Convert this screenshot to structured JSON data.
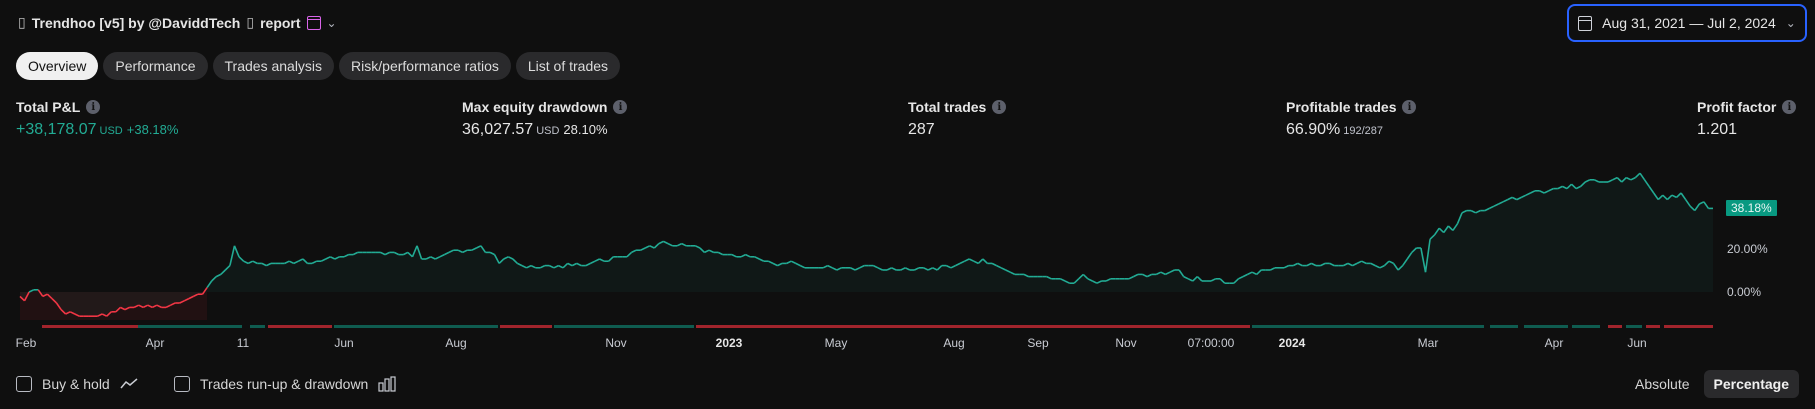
{
  "header": {
    "title": "Trendhoo [v5] by @DaviddTech",
    "suffix": "report",
    "date_range": "Aug 31, 2021 — Jul 2, 2024"
  },
  "tabs": [
    "Overview",
    "Performance",
    "Trades analysis",
    "Risk/performance ratios",
    "List of trades"
  ],
  "metrics": {
    "total_pnl": {
      "label": "Total P&L",
      "value": "+38,178.07",
      "unit": "USD",
      "pct": "+38.18%"
    },
    "max_dd": {
      "label": "Max equity drawdown",
      "value": "36,027.57",
      "unit": "USD",
      "pct": "28.10%"
    },
    "total_trades": {
      "label": "Total trades",
      "value": "287"
    },
    "profitable": {
      "label": "Profitable trades",
      "value": "66.90%",
      "sub": "192/287"
    },
    "profit_factor": {
      "label": "Profit factor",
      "value": "1.201"
    }
  },
  "chart_data": {
    "type": "area",
    "y_ticks": [
      "20.00%",
      "0.00%"
    ],
    "current_label": "38.18%",
    "x_tick_labels": [
      "Feb",
      "Apr",
      "11",
      "Jun",
      "Aug",
      "Nov",
      "2023",
      "May",
      "Aug",
      "Sep",
      "Nov",
      "07:00:00",
      "2024",
      "Mar",
      "Apr",
      "Jun"
    ],
    "x_tick_bold": [
      false,
      false,
      false,
      false,
      false,
      false,
      true,
      false,
      false,
      false,
      false,
      false,
      true,
      false,
      false,
      false
    ],
    "series": [
      {
        "values": [
          -2,
          -4,
          0,
          1,
          1,
          -2,
          -1,
          -3,
          -5,
          -8,
          -10,
          -9,
          -10,
          -11,
          -11,
          -11,
          -11,
          -11,
          -10,
          -11,
          -9,
          -9,
          -7,
          -8,
          -7,
          -7,
          -6,
          -7,
          -6,
          -7,
          -6,
          -7,
          -7,
          -6,
          -5,
          -5,
          -4,
          -3,
          -2,
          -1,
          -1,
          2,
          5,
          7,
          8,
          10,
          12,
          21,
          16,
          14,
          13,
          14,
          13,
          13,
          12,
          13,
          13,
          13,
          13,
          14,
          13,
          14,
          15,
          13,
          13,
          14,
          14,
          15,
          16,
          15,
          16,
          16,
          17,
          17,
          18,
          18,
          18,
          18,
          18,
          18,
          17,
          18,
          18,
          17,
          17,
          18,
          16,
          21,
          15,
          15,
          16,
          15,
          16,
          17,
          18,
          19,
          19,
          18,
          19,
          19,
          20,
          21,
          18,
          18,
          17,
          13,
          15,
          16,
          15,
          13,
          12,
          11,
          12,
          11,
          11,
          12,
          12,
          11,
          12,
          11,
          13,
          12,
          13,
          12,
          12,
          13,
          14,
          15,
          14,
          14,
          16,
          16,
          16,
          16,
          18,
          19,
          19,
          20,
          21,
          20,
          22,
          23,
          22,
          21,
          21,
          22,
          21,
          21,
          21,
          20,
          18,
          19,
          18,
          18,
          17,
          17,
          17,
          16,
          16,
          17,
          16,
          16,
          15,
          14,
          14,
          13,
          12,
          13,
          13,
          14,
          13,
          12,
          11,
          11,
          11,
          11,
          11,
          12,
          11,
          10,
          11,
          11,
          11,
          10,
          11,
          12,
          12,
          12,
          11,
          10,
          10,
          11,
          10,
          10,
          11,
          10,
          10,
          11,
          11,
          10,
          11,
          10,
          12,
          12,
          11,
          12,
          13,
          14,
          15,
          14,
          13,
          15,
          13,
          13,
          12,
          11,
          10,
          9,
          8,
          8,
          8,
          7,
          7,
          7,
          7,
          7,
          6,
          6,
          6,
          5,
          4,
          4,
          6,
          8,
          6,
          5,
          4,
          5,
          5,
          6,
          6,
          6,
          6,
          6,
          7,
          8,
          8,
          7,
          8,
          8,
          9,
          8,
          9,
          10,
          10,
          7,
          6,
          5,
          7,
          5,
          5,
          5,
          6,
          6,
          4,
          4,
          4,
          6,
          7,
          8,
          9,
          8,
          10,
          10,
          10,
          11,
          11,
          11,
          12,
          12,
          13,
          12,
          12,
          13,
          12,
          12,
          13,
          13,
          12,
          12,
          12,
          13,
          12,
          13,
          14,
          13,
          13,
          12,
          11,
          12,
          14,
          13,
          10,
          12,
          15,
          18,
          20,
          20,
          9,
          24,
          26,
          29,
          27,
          30,
          28,
          31,
          36,
          37,
          37,
          36,
          37,
          37,
          38,
          39,
          40,
          41,
          42,
          43,
          42,
          43,
          44,
          45,
          46,
          46,
          45,
          46,
          47,
          47,
          48,
          47,
          49,
          47,
          48,
          50,
          51,
          51,
          50,
          50,
          50,
          51,
          52,
          50,
          52,
          51,
          52,
          54,
          51,
          48,
          45,
          42,
          44,
          42,
          44,
          43,
          45,
          42,
          39,
          37,
          40,
          41,
          38,
          38
        ]
      }
    ]
  },
  "trade_bar_colors": {
    "win": "#0f5c50",
    "loss": "#a1242c"
  },
  "bottom": {
    "buy_hold": "Buy & hold",
    "runup": "Trades run-up & drawdown",
    "absolute": "Absolute",
    "percentage": "Percentage"
  },
  "icons": {
    "calendar": "calendar-icon",
    "info": "info-icon",
    "line_chart": "line-chart-icon",
    "bar_chart": "bar-chart-icon"
  }
}
